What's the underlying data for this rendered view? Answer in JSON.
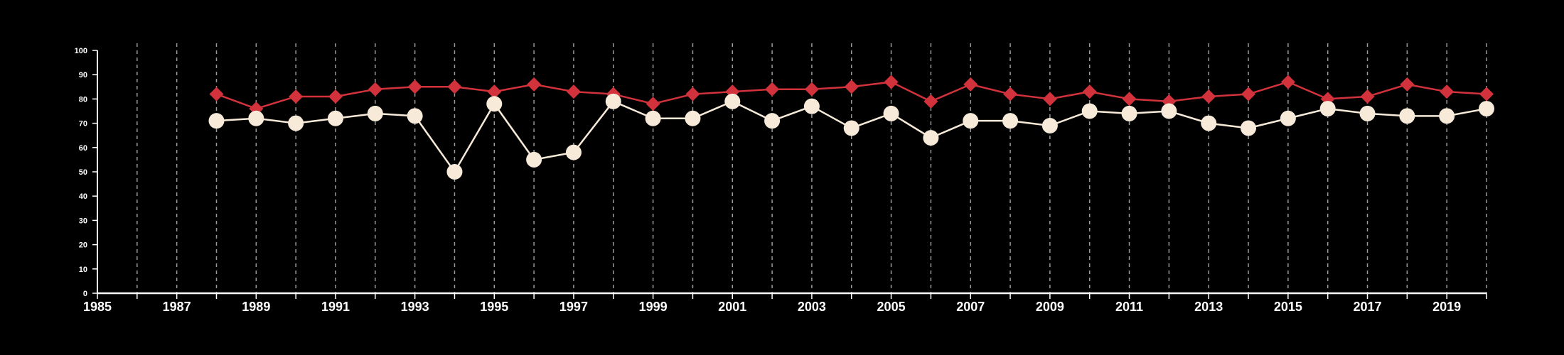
{
  "chart_data": {
    "type": "line",
    "x": [
      1988,
      1989,
      1990,
      1991,
      1992,
      1993,
      1994,
      1995,
      1996,
      1997,
      1998,
      1999,
      2000,
      2001,
      2002,
      2003,
      2004,
      2005,
      2006,
      2007,
      2008,
      2009,
      2010,
      2011,
      2012,
      2013,
      2014,
      2015,
      2016,
      2017,
      2018,
      2019,
      2020
    ],
    "series": [
      {
        "marker": "diamond",
        "color": "#d1323c",
        "values": [
          82,
          76,
          81,
          81,
          84,
          85,
          85,
          83,
          86,
          83,
          82,
          78,
          82,
          83,
          84,
          84,
          85,
          87,
          79,
          86,
          82,
          80,
          83,
          80,
          79,
          81,
          82,
          87,
          80,
          81,
          86,
          83,
          82
        ]
      },
      {
        "marker": "circle",
        "color": "#f7ead9",
        "values": [
          71,
          72,
          70,
          72,
          74,
          73,
          50,
          78,
          55,
          58,
          79,
          72,
          72,
          79,
          71,
          77,
          68,
          74,
          64,
          71,
          71,
          69,
          75,
          74,
          75,
          70,
          68,
          72,
          76,
          74,
          73,
          73,
          76
        ]
      }
    ],
    "xlim": [
      1985,
      2020
    ],
    "ylim": [
      0,
      100
    ],
    "yticks": [
      0,
      10,
      20,
      30,
      40,
      50,
      60,
      70,
      80,
      90,
      100
    ],
    "xtick_labels": [
      1985,
      1987,
      1989,
      1991,
      1993,
      1995,
      1997,
      1999,
      2001,
      2003,
      2005,
      2007,
      2009,
      2011,
      2013,
      2015,
      2017,
      2019
    ],
    "vertical_grid": "dashed, one line per year",
    "background": "#000000",
    "axis_color": "#ffffff",
    "grid_color": "#9a9a9a"
  }
}
